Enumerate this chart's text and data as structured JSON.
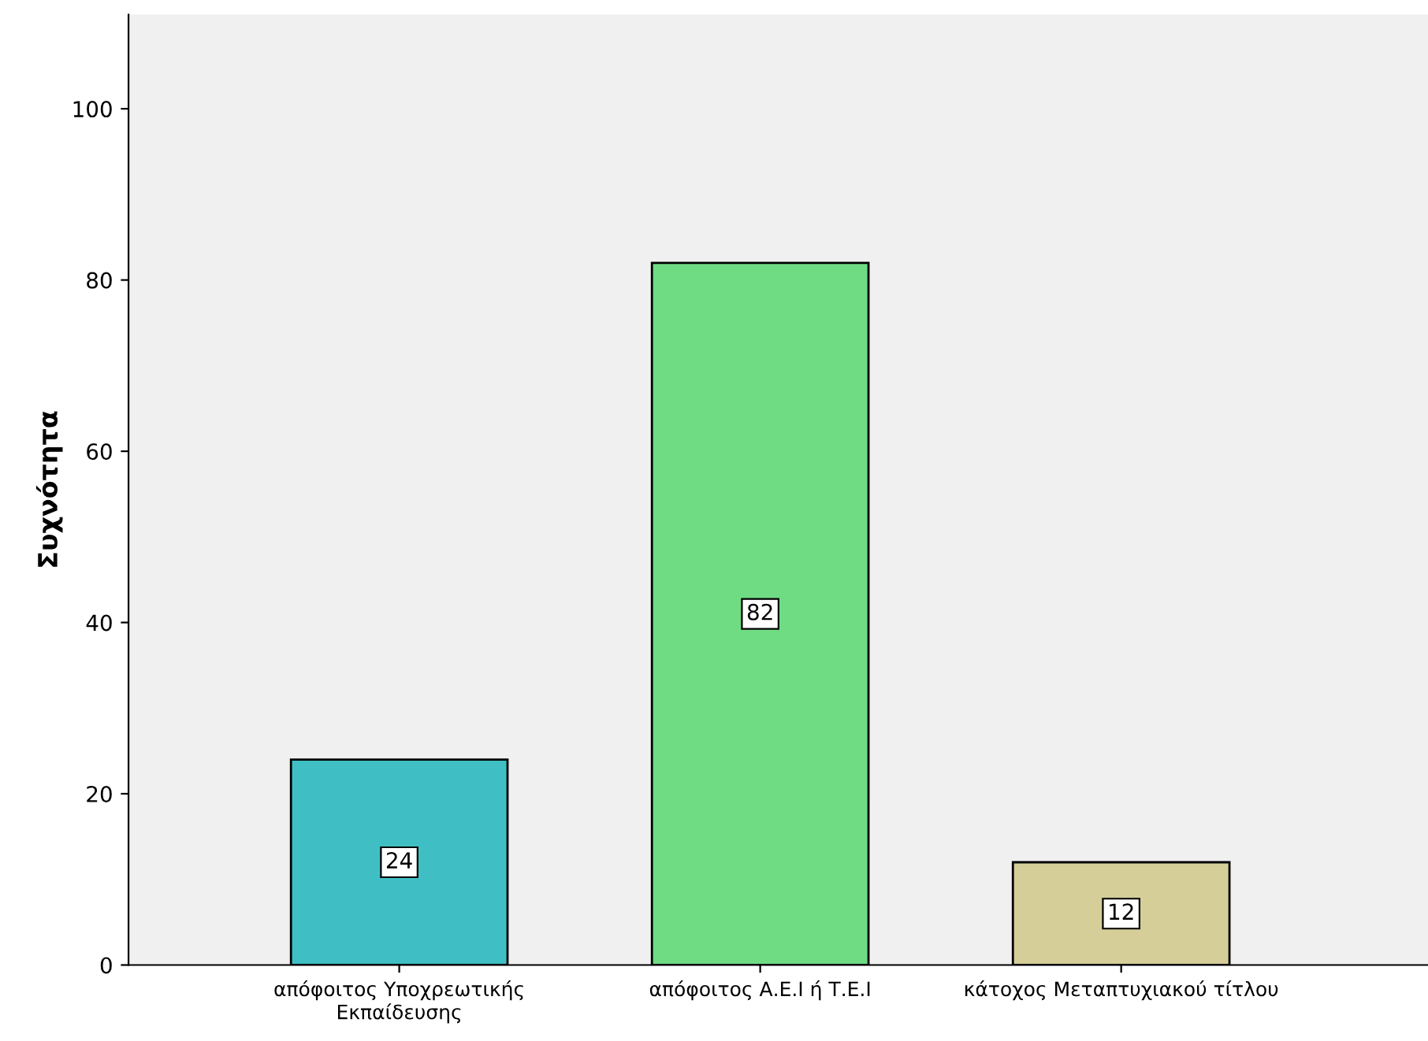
{
  "chart_data": {
    "type": "bar",
    "ylabel": "Συχνότητα",
    "categories": [
      "απόφοιτος Υποχρεωτικής\nΕκπαίδευσης",
      "απόφοιτος Α.Ε.Ι ή Τ.Ε.Ι",
      "κάτοχος Μεταπτυχιακού τίτλου"
    ],
    "values": [
      24,
      82,
      12
    ],
    "colors": [
      "#3fbfc4",
      "#6fdc84",
      "#d5ce99"
    ],
    "ylim": [
      0,
      111
    ],
    "yticks": [
      0,
      20,
      40,
      60,
      80,
      100
    ],
    "grid": false,
    "data_labels": true
  }
}
